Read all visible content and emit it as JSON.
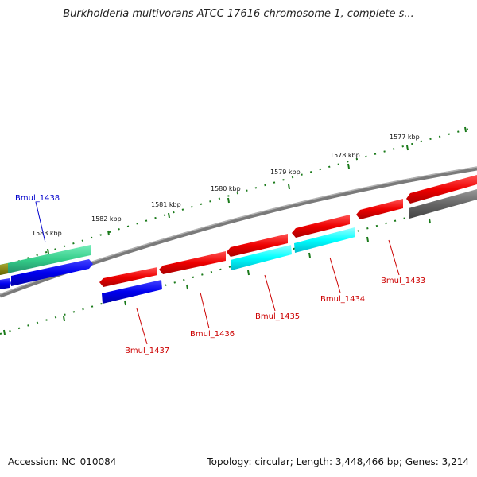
{
  "title": "Burkholderia multivorans ATCC 17616 chromosome 1, complete s...",
  "accession": "Accession: NC_010084",
  "topology": "Topology: circular; Length: 3,448,466 bp; Genes: 3,214",
  "colors": {
    "backbone": "#808080",
    "scale_ticks": "#1a7a1a",
    "red_gene": "#ff0000",
    "blue_gene": "#0000ff",
    "cyan_gene": "#00ffff",
    "teal_gene": "#33cc88",
    "olive_gene": "#888800",
    "gray_gene": "#606060",
    "label_red": "#cc0000",
    "label_blue": "#0000cc"
  },
  "scale_labels": [
    {
      "id": "kbp-1577",
      "text": "1577 kbp"
    },
    {
      "id": "kbp-1578",
      "text": "1578 kbp"
    },
    {
      "id": "kbp-1579",
      "text": "1579 kbp"
    },
    {
      "id": "kbp-1580",
      "text": "1580 kbp"
    },
    {
      "id": "kbp-1581",
      "text": "1581 kbp"
    },
    {
      "id": "kbp-1582",
      "text": "1582 kbp"
    },
    {
      "id": "kbp-1583",
      "text": "1583 kbp"
    }
  ],
  "gene_labels": [
    {
      "id": "bmul-1438",
      "text": "Bmul_1438"
    },
    {
      "id": "bmul-1437",
      "text": "Bmul_1437"
    },
    {
      "id": "bmul-1436",
      "text": "Bmul_1436"
    },
    {
      "id": "bmul-1435",
      "text": "Bmul_1435"
    },
    {
      "id": "bmul-1434",
      "text": "Bmul_1434"
    },
    {
      "id": "bmul-1433",
      "text": "Bmul_1433"
    }
  ]
}
